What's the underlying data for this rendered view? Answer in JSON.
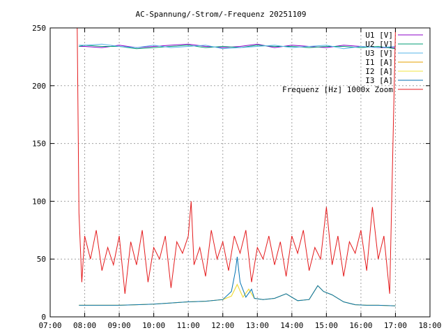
{
  "chart_data": {
    "type": "line",
    "title": "AC-Spannung/-Strom/-Frequenz 20251109",
    "xlabel": "",
    "ylabel": "",
    "x_ticks": [
      "07:00",
      "08:00",
      "09:00",
      "10:00",
      "11:00",
      "12:00",
      "13:00",
      "14:00",
      "15:00",
      "16:00",
      "17:00",
      "18:00"
    ],
    "y_ticks": [
      "0",
      "50",
      "100",
      "150",
      "200",
      "250"
    ],
    "xlim": [
      "07:00",
      "18:00"
    ],
    "ylim": [
      0,
      250
    ],
    "grid": true,
    "legend_position": "top-right",
    "series": [
      {
        "name": "U1 [V]",
        "color": "#8b00c8",
        "x": [
          "07:50",
          "08:00",
          "08:30",
          "09:00",
          "09:30",
          "10:00",
          "10:30",
          "11:00",
          "11:30",
          "12:00",
          "12:30",
          "13:00",
          "13:30",
          "14:00",
          "14:30",
          "15:00",
          "15:30",
          "16:00",
          "16:30",
          "17:00"
        ],
        "values": [
          234,
          234,
          233,
          235,
          233,
          234,
          235,
          236,
          234,
          233,
          234,
          236,
          233,
          235,
          234,
          233,
          235,
          234,
          233,
          233
        ]
      },
      {
        "name": "U2 [V]",
        "color": "#009e73",
        "x": [
          "07:50",
          "08:00",
          "08:30",
          "09:00",
          "09:30",
          "10:00",
          "10:30",
          "11:00",
          "11:30",
          "12:00",
          "12:30",
          "13:00",
          "13:30",
          "14:00",
          "14:30",
          "15:00",
          "15:30",
          "16:00",
          "16:30",
          "17:00"
        ],
        "values": [
          234,
          235,
          234,
          234,
          232,
          233,
          234,
          235,
          233,
          234,
          233,
          235,
          234,
          234,
          233,
          234,
          234,
          233,
          234,
          232
        ]
      },
      {
        "name": "U3 [V]",
        "color": "#56b4e9",
        "x": [
          "07:50",
          "08:00",
          "08:30",
          "09:00",
          "09:30",
          "10:00",
          "10:30",
          "11:00",
          "11:30",
          "12:00",
          "12:30",
          "13:00",
          "13:30",
          "14:00",
          "14:30",
          "15:00",
          "15:30",
          "16:00",
          "16:30",
          "17:00"
        ],
        "values": [
          235,
          235,
          236,
          234,
          233,
          235,
          233,
          234,
          235,
          232,
          233,
          234,
          235,
          233,
          234,
          235,
          232,
          234,
          233,
          234
        ]
      },
      {
        "name": "I1 [A]",
        "color": "#e69f00",
        "x": [
          "07:50",
          "08:00",
          "08:30",
          "09:00",
          "09:30",
          "10:00",
          "10:30",
          "11:00",
          "11:30",
          "12:00",
          "12:15",
          "12:25",
          "12:35",
          "12:45",
          "12:55",
          "13:10",
          "13:30",
          "13:50",
          "14:10",
          "14:30",
          "14:45",
          "14:55",
          "15:10",
          "15:30",
          "15:50",
          "16:10",
          "16:30",
          "17:00"
        ],
        "values": [
          10,
          10,
          10,
          10,
          10.5,
          11,
          12,
          13,
          13.5,
          15,
          18,
          28,
          17,
          24,
          16,
          15,
          16,
          20,
          14,
          15,
          27,
          22,
          19,
          13,
          10.5,
          10,
          10,
          9.5
        ]
      },
      {
        "name": "I2 [A]",
        "color": "#f0e442",
        "x": [
          "07:50",
          "08:00",
          "08:30",
          "09:00",
          "09:30",
          "10:00",
          "10:30",
          "11:00",
          "11:30",
          "12:00",
          "12:15",
          "12:25",
          "12:35",
          "12:45",
          "12:55",
          "13:10",
          "13:30",
          "13:50",
          "14:10",
          "14:30",
          "14:45",
          "14:55",
          "15:10",
          "15:30",
          "15:50",
          "16:10",
          "16:30",
          "17:00"
        ],
        "values": [
          10,
          10,
          10,
          10,
          10.5,
          11,
          12,
          13,
          13.5,
          15,
          18,
          28,
          17,
          24,
          16,
          15,
          16,
          20,
          14,
          15,
          27,
          22,
          19,
          13,
          10.5,
          10,
          10,
          9.5
        ]
      },
      {
        "name": "I3 [A]",
        "color": "#0072b2",
        "x": [
          "07:50",
          "08:00",
          "08:30",
          "09:00",
          "09:30",
          "10:00",
          "10:30",
          "11:00",
          "11:30",
          "12:00",
          "12:15",
          "12:22",
          "12:25",
          "12:30",
          "12:40",
          "12:50",
          "12:55",
          "13:10",
          "13:30",
          "13:50",
          "14:10",
          "14:30",
          "14:45",
          "14:55",
          "15:10",
          "15:30",
          "15:50",
          "16:10",
          "16:30",
          "17:00"
        ],
        "values": [
          10,
          10,
          10,
          10,
          10.5,
          11,
          12,
          13,
          13.5,
          15,
          22,
          40,
          52,
          30,
          17,
          24,
          16,
          15,
          16,
          20,
          14,
          15,
          27,
          22,
          19,
          13,
          10.5,
          10,
          10,
          9.5
        ]
      },
      {
        "name": "Frequenz [Hz] 1000x Zoom",
        "color": "#e41a1c",
        "x": [
          "07:47",
          "07:50",
          "07:55",
          "08:00",
          "08:10",
          "08:20",
          "08:30",
          "08:40",
          "08:50",
          "09:00",
          "09:10",
          "09:20",
          "09:30",
          "09:40",
          "09:50",
          "10:00",
          "10:10",
          "10:20",
          "10:30",
          "10:40",
          "10:50",
          "11:00",
          "11:05",
          "11:10",
          "11:20",
          "11:30",
          "11:40",
          "11:50",
          "12:00",
          "12:10",
          "12:20",
          "12:30",
          "12:40",
          "12:50",
          "13:00",
          "13:10",
          "13:20",
          "13:30",
          "13:40",
          "13:50",
          "14:00",
          "14:10",
          "14:20",
          "14:30",
          "14:40",
          "14:50",
          "15:00",
          "15:10",
          "15:20",
          "15:30",
          "15:40",
          "15:50",
          "16:00",
          "16:10",
          "16:20",
          "16:30",
          "16:40",
          "16:50",
          "17:00"
        ],
        "values": [
          250,
          90,
          30,
          70,
          50,
          75,
          40,
          60,
          45,
          70,
          20,
          65,
          45,
          75,
          30,
          60,
          50,
          70,
          25,
          65,
          55,
          70,
          100,
          45,
          60,
          35,
          75,
          50,
          65,
          40,
          70,
          55,
          75,
          30,
          60,
          50,
          70,
          45,
          65,
          35,
          70,
          55,
          75,
          40,
          60,
          50,
          95,
          45,
          70,
          35,
          65,
          55,
          75,
          40,
          95,
          50,
          70,
          20,
          250
        ]
      }
    ]
  }
}
